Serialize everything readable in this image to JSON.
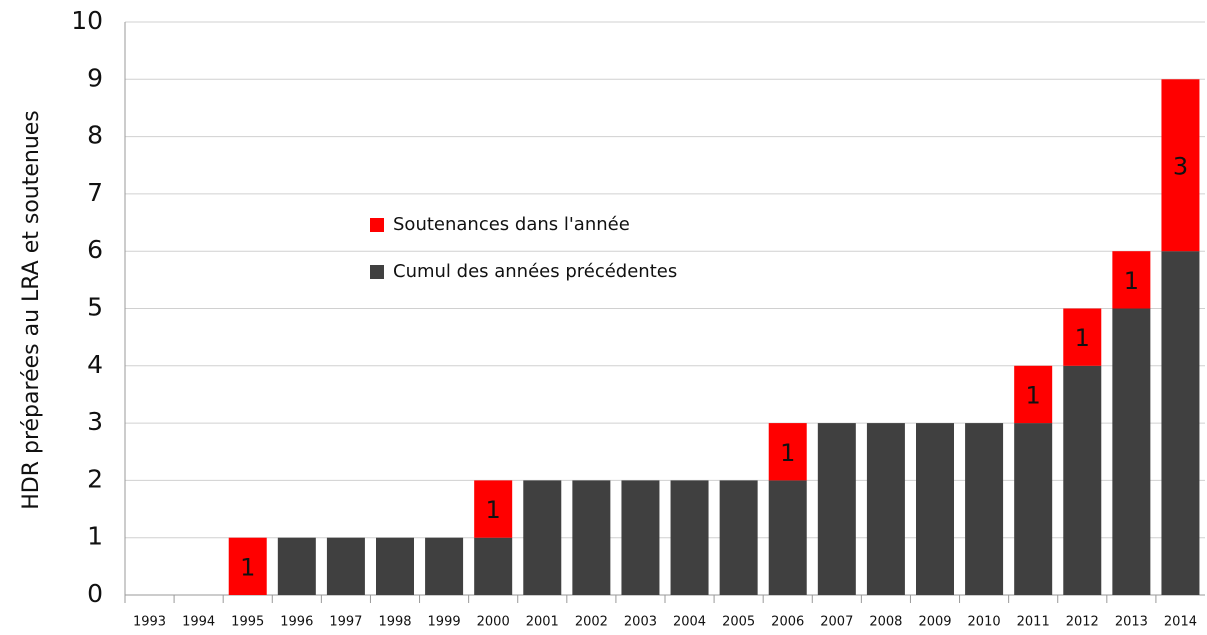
{
  "chart_data": {
    "type": "stacked_bar",
    "y_label": "HDR préparées au LRA et soutenues",
    "categories": [
      "1993",
      "1994",
      "1995",
      "1996",
      "1997",
      "1998",
      "1999",
      "2000",
      "2001",
      "2002",
      "2003",
      "2004",
      "2005",
      "2006",
      "2007",
      "2008",
      "2009",
      "2010",
      "2011",
      "2012",
      "2013",
      "2014"
    ],
    "series": [
      {
        "name": "Soutenances dans l'année",
        "color": "#ff0000",
        "values": [
          null,
          null,
          1,
          null,
          null,
          null,
          null,
          1,
          null,
          null,
          null,
          null,
          null,
          1,
          null,
          null,
          null,
          null,
          1,
          1,
          1,
          3
        ]
      },
      {
        "name": "Cumul des années précédentes",
        "color": "#404040",
        "values": [
          0,
          0,
          0,
          1,
          1,
          1,
          1,
          1,
          2,
          2,
          2,
          2,
          2,
          2,
          3,
          3,
          3,
          3,
          3,
          4,
          5,
          6
        ]
      }
    ],
    "ylim": [
      0,
      10
    ],
    "yticks": [
      0,
      1,
      2,
      3,
      4,
      5,
      6,
      7,
      8,
      9,
      10
    ],
    "grid": true
  }
}
